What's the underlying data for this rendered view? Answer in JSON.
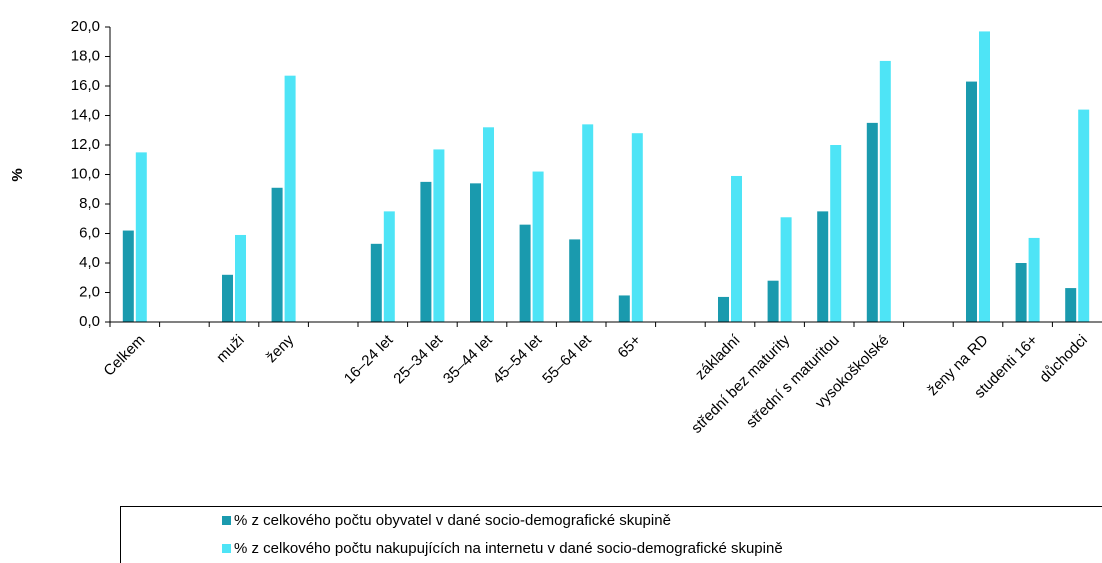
{
  "chart_data": {
    "type": "bar",
    "y_label": "%",
    "categories": [
      "Celkem",
      null,
      "muži",
      "ženy",
      null,
      "16–24 let",
      "25–34 let",
      "35–44 let",
      "45–54 let",
      "55–64 let",
      "65+",
      null,
      "základní",
      "střední bez maturity",
      "střední s maturitou",
      "vysokoškolské",
      null,
      "ženy na RD",
      "studenti 16+",
      "důchodci"
    ],
    "series": [
      {
        "name": "% z celkového počtu obyvatel v dané socio-demografické skupině",
        "color": "#1a9aae",
        "values": [
          6.2,
          null,
          3.2,
          9.1,
          null,
          5.3,
          9.5,
          9.4,
          6.6,
          5.6,
          1.8,
          null,
          1.7,
          2.8,
          7.5,
          13.5,
          null,
          16.3,
          4.0,
          2.3
        ]
      },
      {
        "name": "% z celkového počtu nakupujících na internetu v dané socio-demografické skupině",
        "color": "#4ee4f6",
        "values": [
          11.5,
          null,
          5.9,
          16.7,
          null,
          7.5,
          11.7,
          13.2,
          10.2,
          13.4,
          12.8,
          null,
          9.9,
          7.1,
          12.0,
          17.7,
          null,
          19.7,
          5.7,
          14.4
        ]
      }
    ],
    "ylim": [
      0,
      20
    ],
    "yticks": [
      {
        "value": 0,
        "label": "0,0"
      },
      {
        "value": 2,
        "label": "2,0"
      },
      {
        "value": 4,
        "label": "4,0"
      },
      {
        "value": 6,
        "label": "6,0"
      },
      {
        "value": 8,
        "label": "8,0"
      },
      {
        "value": 10,
        "label": "10,0"
      },
      {
        "value": 12,
        "label": "12,0"
      },
      {
        "value": 14,
        "label": "14,0"
      },
      {
        "value": 16,
        "label": "16,0"
      },
      {
        "value": 18,
        "label": "18,0"
      },
      {
        "value": 20,
        "label": "20,0"
      }
    ]
  }
}
